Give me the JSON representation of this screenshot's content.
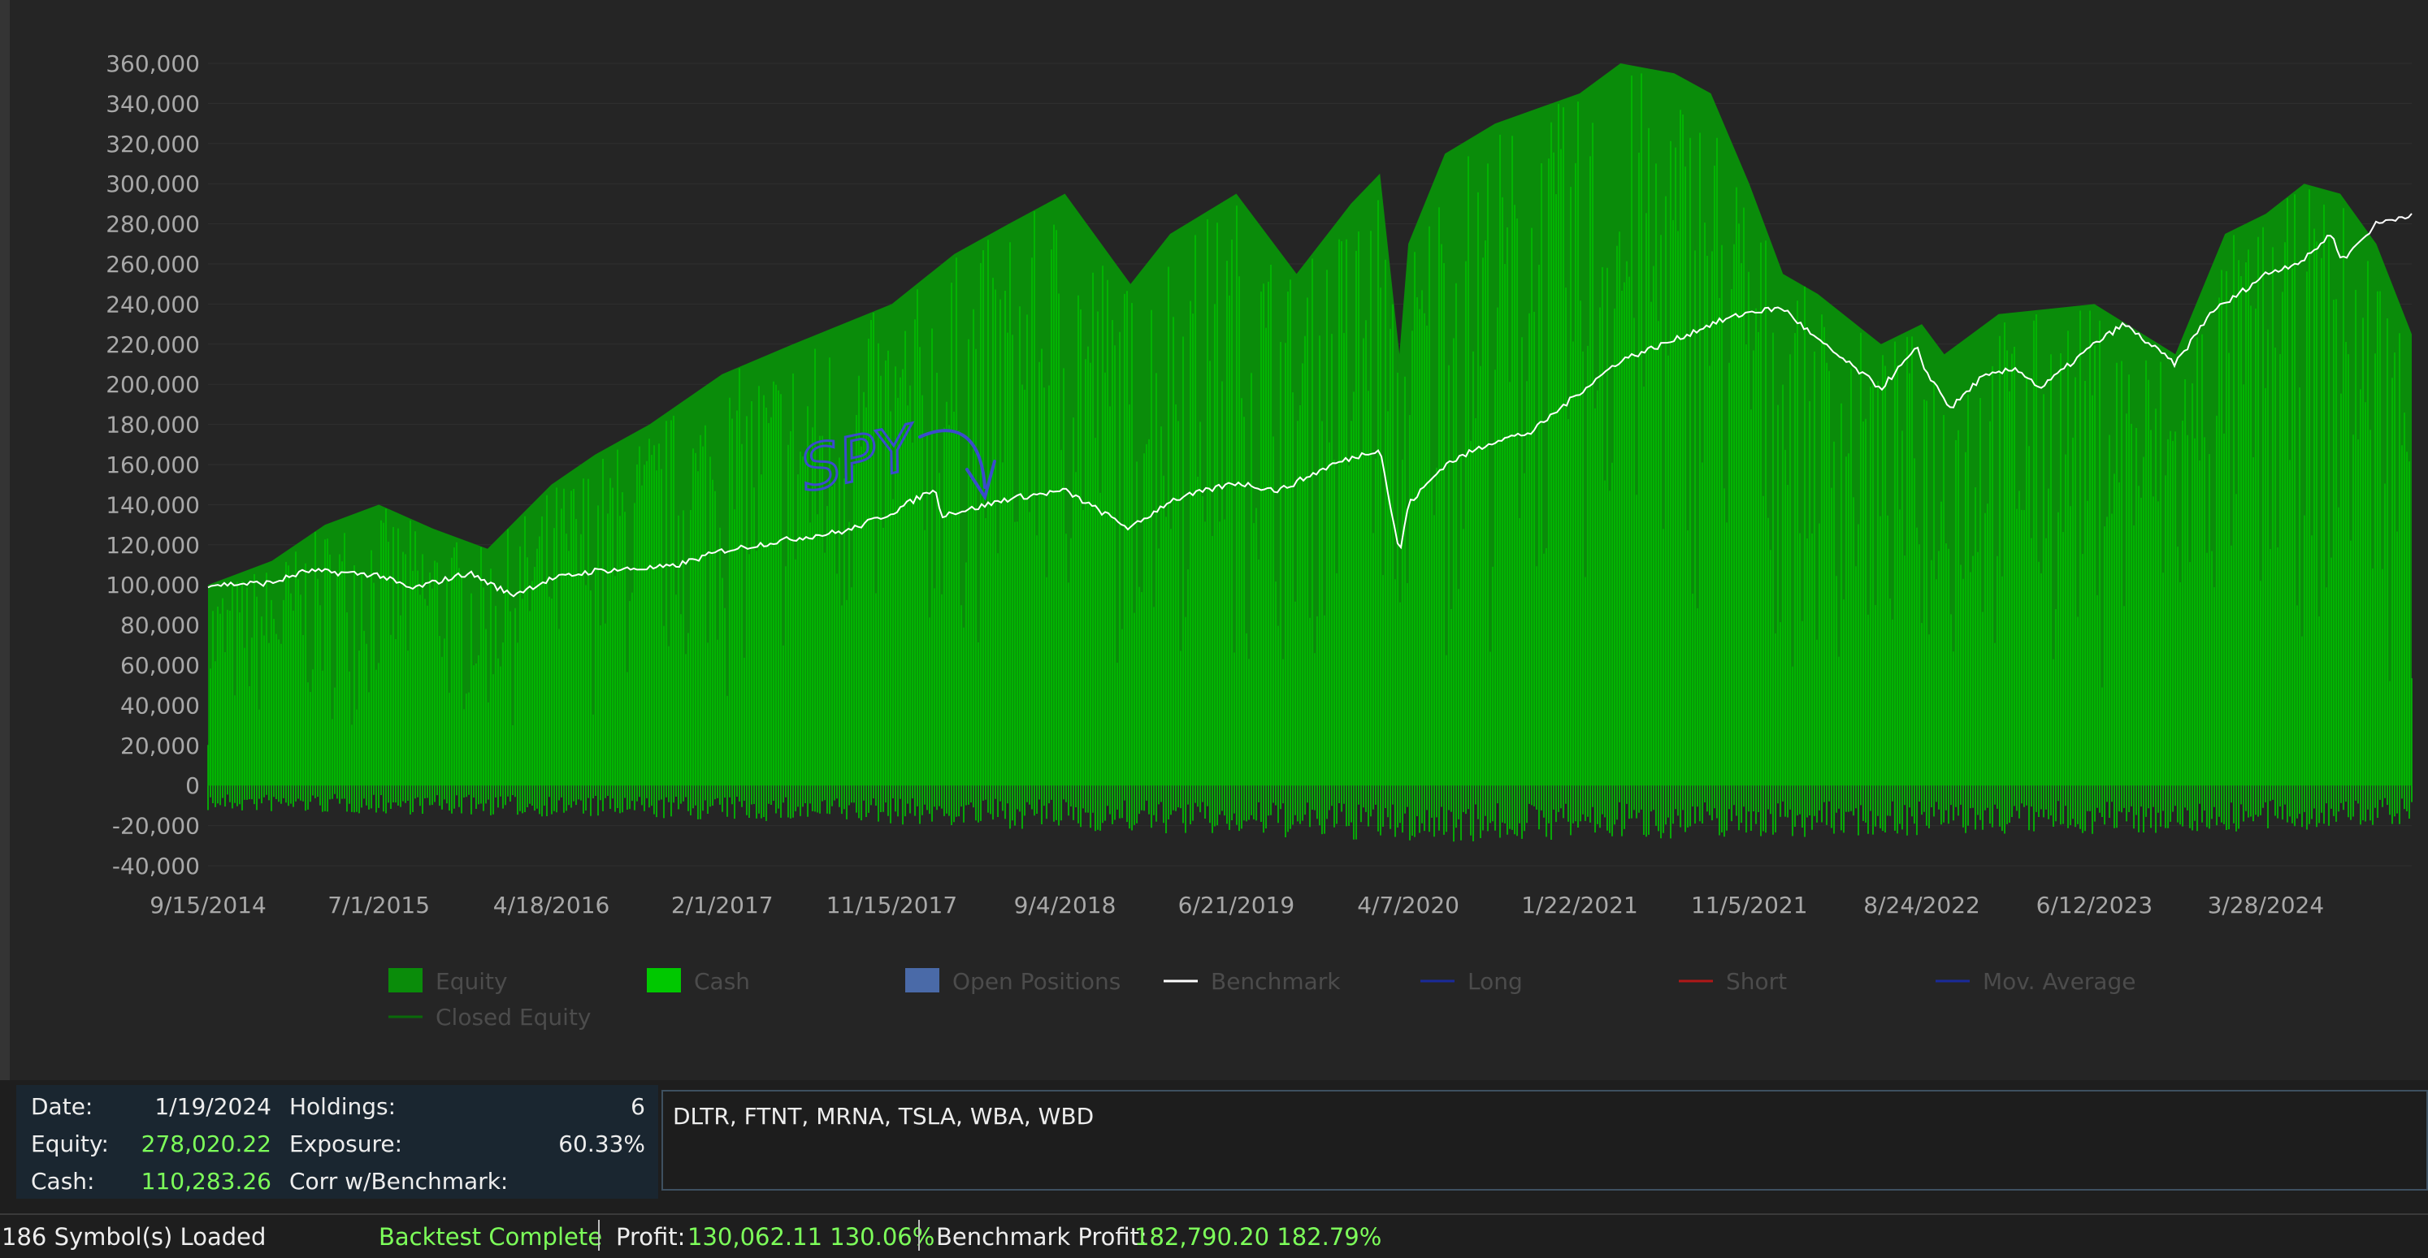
{
  "chart_data": {
    "type": "area",
    "title": "",
    "xlabel": "",
    "ylabel": "",
    "ylim": [
      -40000,
      360000
    ],
    "yticks": [
      -40000,
      -20000,
      0,
      20000,
      40000,
      60000,
      80000,
      100000,
      120000,
      140000,
      160000,
      180000,
      200000,
      220000,
      240000,
      260000,
      280000,
      300000,
      320000,
      340000,
      360000
    ],
    "ytick_labels": [
      "-40,000",
      "-20,000",
      "0",
      "20,000",
      "40,000",
      "60,000",
      "80,000",
      "100,000",
      "120,000",
      "140,000",
      "160,000",
      "180,000",
      "200,000",
      "220,000",
      "240,000",
      "260,000",
      "280,000",
      "300,000",
      "320,000",
      "340,000",
      "360,000"
    ],
    "xlim": [
      "9/15/2014",
      "11/30/2024"
    ],
    "xtick_labels": [
      "9/15/2014",
      "7/1/2015",
      "4/18/2016",
      "2/1/2017",
      "11/15/2017",
      "9/4/2018",
      "6/21/2019",
      "4/7/2020",
      "1/22/2021",
      "11/5/2021",
      "8/24/2022",
      "6/12/2023",
      "3/28/2024"
    ],
    "grid": true,
    "legend_position": "bottom",
    "series": [
      {
        "name": "Equity",
        "color": "#0a8c0a",
        "x": [
          "9/15/2014",
          "1/1/2015",
          "4/1/2015",
          "7/1/2015",
          "10/1/2015",
          "1/1/2016",
          "4/18/2016",
          "7/1/2016",
          "10/1/2016",
          "2/1/2017",
          "6/1/2017",
          "11/15/2017",
          "3/1/2018",
          "6/1/2018",
          "9/4/2018",
          "12/24/2018",
          "3/1/2019",
          "6/21/2019",
          "10/1/2019",
          "1/1/2020",
          "2/19/2020",
          "3/23/2020",
          "4/7/2020",
          "6/8/2020",
          "9/1/2020",
          "1/22/2021",
          "4/1/2021",
          "7/1/2021",
          "9/1/2021",
          "11/5/2021",
          "1/1/2022",
          "3/1/2022",
          "6/16/2022",
          "8/24/2022",
          "10/1/2022",
          "1/1/2023",
          "6/12/2023",
          "10/27/2023",
          "1/19/2024",
          "3/28/2024",
          "6/1/2024",
          "8/1/2024",
          "10/1/2024",
          "11/30/2024"
        ],
        "values": [
          100000,
          112000,
          130000,
          140000,
          128000,
          118000,
          150000,
          165000,
          180000,
          205000,
          220000,
          240000,
          265000,
          280000,
          295000,
          250000,
          275000,
          295000,
          255000,
          290000,
          305000,
          215000,
          270000,
          315000,
          330000,
          345000,
          360000,
          355000,
          345000,
          300000,
          255000,
          245000,
          220000,
          230000,
          215000,
          235000,
          240000,
          215000,
          275000,
          285000,
          300000,
          295000,
          270000,
          225000
        ]
      },
      {
        "name": "Cash",
        "color": "#00c800",
        "x": [
          "9/15/2014",
          "4/18/2016",
          "11/15/2017",
          "4/7/2020",
          "11/5/2021",
          "3/28/2024",
          "11/30/2024"
        ],
        "values": [
          -10000,
          -12000,
          -15000,
          -22000,
          -20000,
          -18000,
          -15000
        ]
      },
      {
        "name": "Benchmark",
        "color": "#ffffff",
        "x": [
          "9/15/2014",
          "1/1/2015",
          "3/1/2015",
          "7/1/2015",
          "8/24/2015",
          "12/1/2015",
          "2/11/2016",
          "4/18/2016",
          "7/1/2016",
          "11/8/2016",
          "2/1/2017",
          "6/1/2017",
          "9/1/2017",
          "11/15/2017",
          "1/26/2018",
          "2/8/2018",
          "4/1/2018",
          "6/1/2018",
          "9/4/2018",
          "12/24/2018",
          "3/1/2019",
          "6/21/2019",
          "9/1/2019",
          "12/1/2019",
          "2/19/2020",
          "3/23/2020",
          "4/7/2020",
          "6/8/2020",
          "9/1/2020",
          "11/1/2020",
          "1/22/2021",
          "4/1/2021",
          "7/1/2021",
          "9/1/2021",
          "11/5/2021",
          "1/1/2022",
          "3/1/2022",
          "6/16/2022",
          "8/16/2022",
          "8/24/2022",
          "10/12/2022",
          "12/1/2022",
          "2/1/2023",
          "3/13/2023",
          "6/12/2023",
          "8/1/2023",
          "10/27/2023",
          "12/29/2023",
          "1/19/2024",
          "3/28/2024",
          "6/1/2024",
          "7/16/2024",
          "8/5/2024",
          "10/1/2024",
          "11/30/2024"
        ],
        "values": [
          100000,
          101000,
          107000,
          105000,
          98000,
          106000,
          95000,
          103000,
          107000,
          109000,
          117000,
          123000,
          127000,
          136000,
          148000,
          135000,
          138000,
          143000,
          147000,
          128000,
          142000,
          151000,
          147000,
          160000,
          168000,
          115000,
          140000,
          160000,
          172000,
          176000,
          196000,
          212000,
          222000,
          230000,
          236000,
          238000,
          222000,
          198000,
          218000,
          210000,
          188000,
          203000,
          208000,
          198000,
          220000,
          230000,
          210000,
          237000,
          240000,
          255000,
          262000,
          275000,
          262000,
          280000,
          285000
        ]
      },
      {
        "name": "Open Positions",
        "color": "#4a6aa8",
        "values": []
      },
      {
        "name": "Long",
        "color": "#1a2a9a",
        "values": []
      },
      {
        "name": "Short",
        "color": "#b01818",
        "values": []
      },
      {
        "name": "Mov. Average",
        "color": "#1a2a9a",
        "values": []
      },
      {
        "name": "Closed Equity",
        "color": "#0a6a0a",
        "values": []
      }
    ]
  },
  "legend": [
    {
      "label": "Equity",
      "kind": "box",
      "color": "#0a8c0a"
    },
    {
      "label": "Cash",
      "kind": "box",
      "color": "#00c800"
    },
    {
      "label": "Open Positions",
      "kind": "box",
      "color": "#4a6aa8"
    },
    {
      "label": "Benchmark",
      "kind": "line",
      "color": "#ffffff"
    },
    {
      "label": "Long",
      "kind": "line",
      "color": "#1a2a9a"
    },
    {
      "label": "Short",
      "kind": "line",
      "color": "#b01818"
    },
    {
      "label": "Mov. Average",
      "kind": "line",
      "color": "#1a2a9a"
    },
    {
      "label": "Closed Equity",
      "kind": "line",
      "color": "#0a6a0a"
    }
  ],
  "annotation": {
    "text": "SPY",
    "color": "#3b4bcc"
  },
  "info": {
    "date_label": "Date:",
    "date_value": "1/19/2024",
    "equity_label": "Equity:",
    "equity_value": "278,020.22",
    "cash_label": "Cash:",
    "cash_value": "110,283.26",
    "holdings_label": "Holdings:",
    "holdings_value": "6",
    "exposure_label": "Exposure:",
    "exposure_value": "60.33%",
    "corr_label": "Corr w/Benchmark:",
    "corr_value": ""
  },
  "symbols_text": "DLTR, FTNT, MRNA, TSLA, WBA, WBD",
  "status": {
    "symbols_loaded": "186 Symbol(s) Loaded",
    "backtest_status": "Backtest Complete",
    "profit_label": "Profit:",
    "profit_value": "130,062.11 130.06%",
    "benchmark_profit_label": "Benchmark Profit:",
    "benchmark_profit_value": "182,790.20 182.79%"
  }
}
